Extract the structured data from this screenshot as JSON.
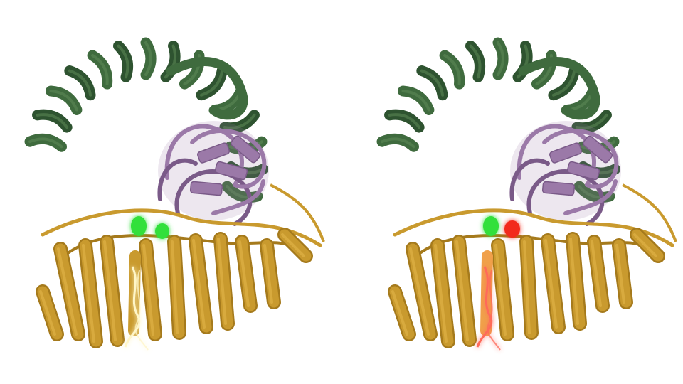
{
  "figure": {
    "background": "#ffffff",
    "panels": [
      {
        "id": "left",
        "subject": "protein-complex-ribbon",
        "highlight": "green",
        "helix_glow": "#fff6c8"
      },
      {
        "id": "right",
        "subject": "protein-complex-ribbon",
        "highlight": "green-red",
        "helix_glow": "#ff6a5a"
      }
    ],
    "colors": {
      "arc_domain": "#3f6b3e",
      "arc_domain_dark": "#2e5330",
      "arc_domain_light": "#5e8a57",
      "globular_domain": "#9b79a8",
      "globular_domain_dark": "#7a5a88",
      "membrane_domain": "#c99a2e",
      "membrane_domain_dark": "#a57a1c",
      "membrane_domain_light": "#e2b64a",
      "marker_green": "#33e03a",
      "marker_red": "#f22b1e",
      "highlight_helix": "#f0a04a"
    }
  }
}
